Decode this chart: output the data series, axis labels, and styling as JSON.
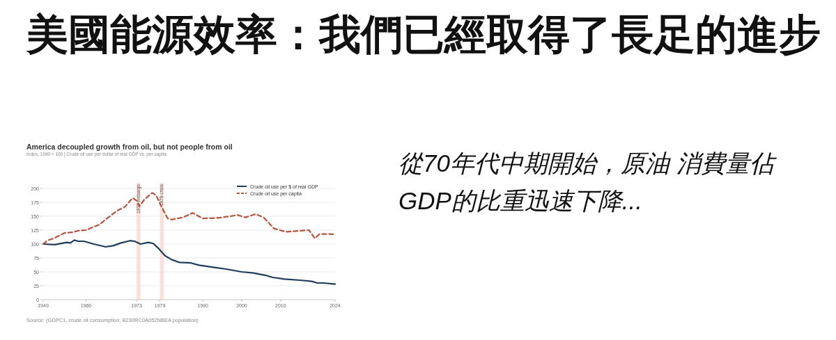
{
  "chart_data": {
    "type": "line",
    "title": "美國能源效率：我們已經取得了長足的進步",
    "subtitle": "America decoupled growth from oil, but not people from oil",
    "annotations": [
      "Index, 1949 = 100  |  Crude oil use per dollar of real GDP vs. per capita",
      "Source: (GDPC1, crude oil consumption; B230RC0A052NBEA population)",
      "從70年代中期開始，原油 消費量佔GDP的比重迅速下降..."
    ],
    "series": [
      {
        "name": "Crude oil use per $ of real GDP",
        "color": "#1f3d5a",
        "line_style": "solid",
        "x": [
          1949,
          1952,
          1955,
          1956,
          1957,
          1958,
          1959.5,
          1962,
          1965,
          1967,
          1969,
          1971.3,
          1972.5,
          1974,
          1976,
          1977.3,
          1978.5,
          1980.3,
          1982,
          1984,
          1987,
          1989,
          1993,
          1996,
          2000,
          2003,
          2006,
          2008,
          2011,
          2015,
          2018,
          2019.4,
          2021,
          2024
        ],
        "values": [
          100,
          99,
          103,
          102,
          107,
          105,
          105,
          100,
          95,
          97,
          102,
          106,
          105,
          100,
          103,
          101,
          93,
          79,
          72,
          67,
          66,
          62,
          58,
          55,
          50,
          48,
          44,
          40,
          37,
          35,
          33,
          30,
          30,
          28
        ]
      },
      {
        "name": "Crude oil use per capita",
        "color": "#b5533c",
        "line_style": "dashed",
        "x": [
          1949,
          1950,
          1952,
          1954.5,
          1956.5,
          1958,
          1960,
          1962,
          1963.5,
          1965,
          1968,
          1970,
          1972,
          1973,
          1973.7,
          1975,
          1977,
          1978,
          1979.4,
          1981,
          1982,
          1985,
          1987.4,
          1990,
          1994,
          1997,
          1999,
          2001,
          2003.6,
          2005.6,
          2008.3,
          2011.3,
          2017.3,
          2018.8,
          2020,
          2023,
          2024
        ],
        "values": [
          100,
          106,
          111,
          120,
          121,
          124,
          125,
          131,
          135,
          144,
          160,
          167,
          183,
          178,
          168,
          180,
          192,
          188,
          167,
          146,
          144,
          148,
          156,
          146,
          147,
          150,
          152,
          148,
          154,
          148,
          128,
          122,
          125,
          110,
          118,
          118,
          117
        ]
      }
    ],
    "xlim": [
      1949,
      2024
    ],
    "xticks": [
      1949,
      1960,
      1973,
      1979,
      1990,
      2000,
      2010,
      2024
    ],
    "ylim": [
      0,
      200
    ],
    "yticks": [
      0,
      25,
      50,
      75,
      100,
      125,
      150,
      175,
      200
    ],
    "bands": [
      {
        "axis": "x",
        "from": 1973,
        "to": 1974,
        "label": "1973 embargo",
        "color": "#f7d8cf"
      },
      {
        "axis": "x",
        "from": 1979,
        "to": 1980,
        "label": "1979 crisis",
        "color": "#f7d8cf"
      }
    ],
    "grid": "y",
    "legend": "top right"
  }
}
